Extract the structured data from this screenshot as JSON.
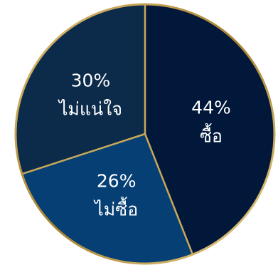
{
  "chart_data": {
    "type": "pie",
    "start_angle_deg": 0,
    "direction": "clockwise",
    "slices": [
      {
        "label": "ซื้อ",
        "value": 44,
        "value_label": "44%",
        "color": "#02183a"
      },
      {
        "label": "ไม่ซื้อ",
        "value": 26,
        "value_label": "26%",
        "color": "#053f74"
      },
      {
        "label": "ไม่แน่ใจ",
        "value": 30,
        "value_label": "30%",
        "color": "#0c2b4a"
      }
    ],
    "border_color": "#c9a85a",
    "divider_color": "#c9a85a"
  }
}
